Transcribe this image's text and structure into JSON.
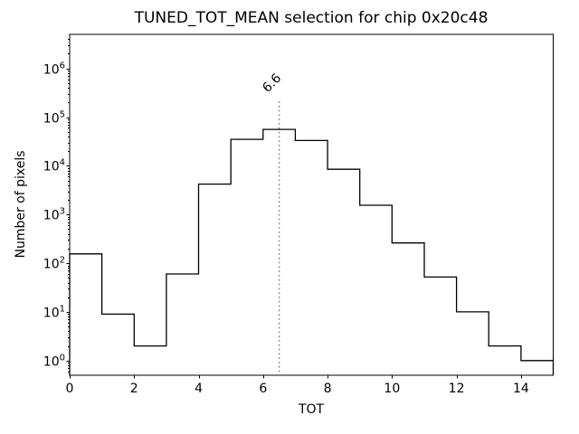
{
  "chart_data": {
    "type": "bar",
    "subtype": "histogram-step-outline",
    "title": "TUNED_TOT_MEAN selection for chip 0x20c48",
    "xlabel": "TOT",
    "ylabel": "Number of pixels",
    "yscale": "log",
    "xlim": [
      0,
      15
    ],
    "ylim": [
      0.5,
      5000000
    ],
    "bin_edges": [
      0,
      1,
      2,
      3,
      4,
      5,
      6,
      7,
      8,
      9,
      10,
      11,
      12,
      13,
      14,
      15
    ],
    "counts": [
      155,
      9,
      2,
      60,
      4200,
      35000,
      56000,
      33000,
      8500,
      1550,
      260,
      52,
      10,
      2,
      1
    ],
    "x_ticks": [
      0,
      2,
      4,
      6,
      8,
      10,
      12,
      14
    ],
    "y_major_tick_exponents": [
      0,
      1,
      2,
      3,
      4,
      5,
      6
    ],
    "grid": false,
    "legend": false,
    "line_color": "#000000",
    "annotation": {
      "vline_x": 6.5,
      "label": "6.6",
      "color": "#8f8f8f",
      "linestyle": "dotted",
      "label_rotation_deg": 45
    }
  }
}
